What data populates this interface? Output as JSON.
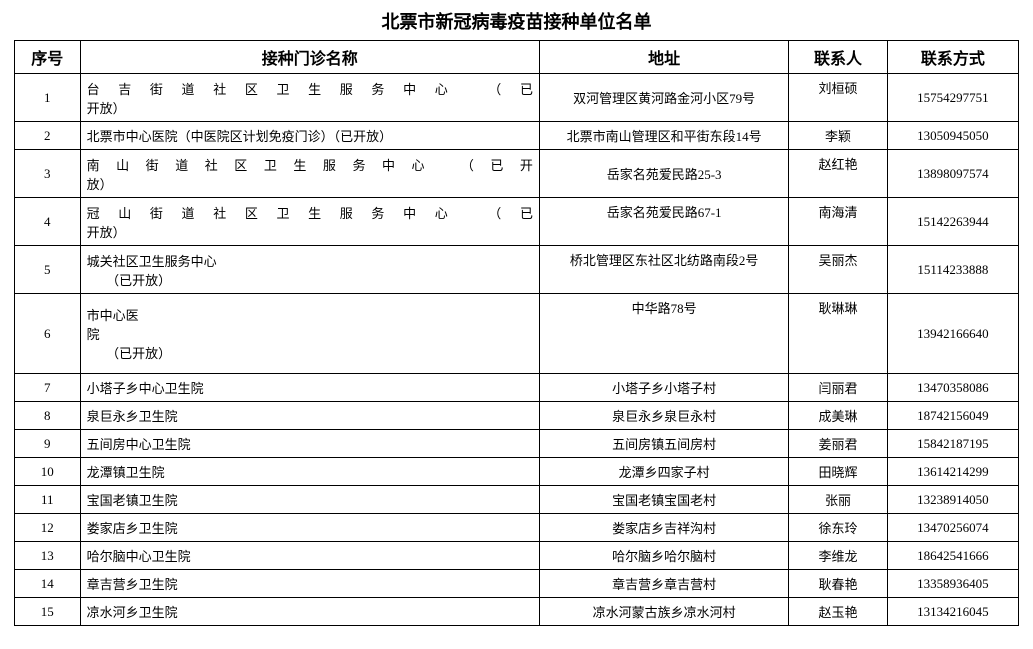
{
  "title": "北票市新冠病毒疫苗接种单位名单",
  "title_fontsize": "18px",
  "cell_fontsize": "13px",
  "columns": {
    "seq": "序号",
    "name": "接种门诊名称",
    "addr": "地址",
    "contact": "联系人",
    "phone": "联系方式"
  },
  "rows": [
    {
      "seq": "1",
      "justify": true,
      "name_l1": "台吉街道社区卫生服务中心",
      "name_r1": "（已",
      "name_l2": "开放）",
      "addr": "双河管理区黄河路金河小区79号",
      "addr_top": false,
      "contact": "刘桓硕",
      "contact_top": true,
      "phone": "15754297751",
      "cls": "tall"
    },
    {
      "seq": "2",
      "justify": false,
      "name_l1": "北票市中心医院（中医院区计划免疫门诊）（已开放）",
      "addr": "北票市南山管理区和平街东段14号",
      "addr_top": false,
      "contact": "李颖",
      "contact_top": false,
      "phone": "13050945050",
      "cls": "short"
    },
    {
      "seq": "3",
      "justify": true,
      "name_l1": "南山街道社区卫生服务中心",
      "name_r1": "（已开",
      "name_l2": "放）",
      "addr": "岳家名苑爱民路25-3",
      "addr_top": false,
      "contact": "赵红艳",
      "contact_top": true,
      "phone": "13898097574",
      "cls": "tall"
    },
    {
      "seq": "4",
      "justify": true,
      "name_l1": "冠山街道社区卫生服务中心",
      "name_r1": "（已",
      "name_l2": "开放）",
      "addr": "岳家名苑爱民路67-1",
      "addr_top": true,
      "contact": "南海清",
      "contact_top": true,
      "phone": "15142263944",
      "cls": "tall"
    },
    {
      "seq": "5",
      "justify": false,
      "name_l1": "城关社区卫生服务中心",
      "name_l2": "　　（已开放）",
      "addr": "桥北管理区东社区北纺路南段2号",
      "addr_top": true,
      "contact": "吴丽杰",
      "contact_top": true,
      "phone": "15114233888",
      "cls": "tall"
    },
    {
      "seq": "6",
      "justify": false,
      "name_l1": "市中心医",
      "name_l2": "院",
      "name_l3": "　　（已开放）",
      "addr": "中华路78号",
      "addr_top": true,
      "contact": "耿琳琳",
      "contact_top": true,
      "phone": "13942166640",
      "cls": "tall3"
    },
    {
      "seq": "7",
      "justify": false,
      "name_l1": "小塔子乡中心卫生院",
      "addr": "小塔子乡小塔子村",
      "addr_top": false,
      "contact": "闫丽君",
      "contact_top": false,
      "phone": "13470358086",
      "cls": "short"
    },
    {
      "seq": "8",
      "justify": false,
      "name_l1": "泉巨永乡卫生院",
      "addr": "泉巨永乡泉巨永村",
      "addr_top": false,
      "contact": "成美琳",
      "contact_top": false,
      "phone": "18742156049",
      "cls": "short"
    },
    {
      "seq": "9",
      "justify": false,
      "name_l1": "五间房中心卫生院",
      "addr": "五间房镇五间房村",
      "addr_top": false,
      "contact": "姜丽君",
      "contact_top": false,
      "phone": "15842187195",
      "cls": "short"
    },
    {
      "seq": "10",
      "justify": false,
      "name_l1": "龙潭镇卫生院",
      "addr": "龙潭乡四家子村",
      "addr_top": false,
      "contact": "田晓辉",
      "contact_top": false,
      "phone": "13614214299",
      "cls": "short"
    },
    {
      "seq": "11",
      "justify": false,
      "name_l1": "宝国老镇卫生院",
      "addr": "宝国老镇宝国老村",
      "addr_top": false,
      "contact": "张丽",
      "contact_top": false,
      "phone": "13238914050",
      "cls": "short"
    },
    {
      "seq": "12",
      "justify": false,
      "name_l1": "娄家店乡卫生院",
      "addr": "娄家店乡吉祥沟村",
      "addr_top": false,
      "contact": "徐东玲",
      "contact_top": false,
      "phone": "13470256074",
      "cls": "short"
    },
    {
      "seq": "13",
      "justify": false,
      "name_l1": "哈尔脑中心卫生院",
      "addr": "哈尔脑乡哈尔脑村",
      "addr_top": false,
      "contact": "李维龙",
      "contact_top": false,
      "phone": "18642541666",
      "cls": "short"
    },
    {
      "seq": "14",
      "justify": false,
      "name_l1": "章吉营乡卫生院",
      "addr": "章吉营乡章吉营村",
      "addr_top": false,
      "contact": "耿春艳",
      "contact_top": false,
      "phone": "13358936405",
      "cls": "short"
    },
    {
      "seq": "15",
      "justify": false,
      "name_l1": "凉水河乡卫生院",
      "addr": "凉水河蒙古族乡凉水河村",
      "addr_top": false,
      "contact": "赵玉艳",
      "contact_top": false,
      "phone": "13134216045",
      "cls": "short"
    }
  ]
}
